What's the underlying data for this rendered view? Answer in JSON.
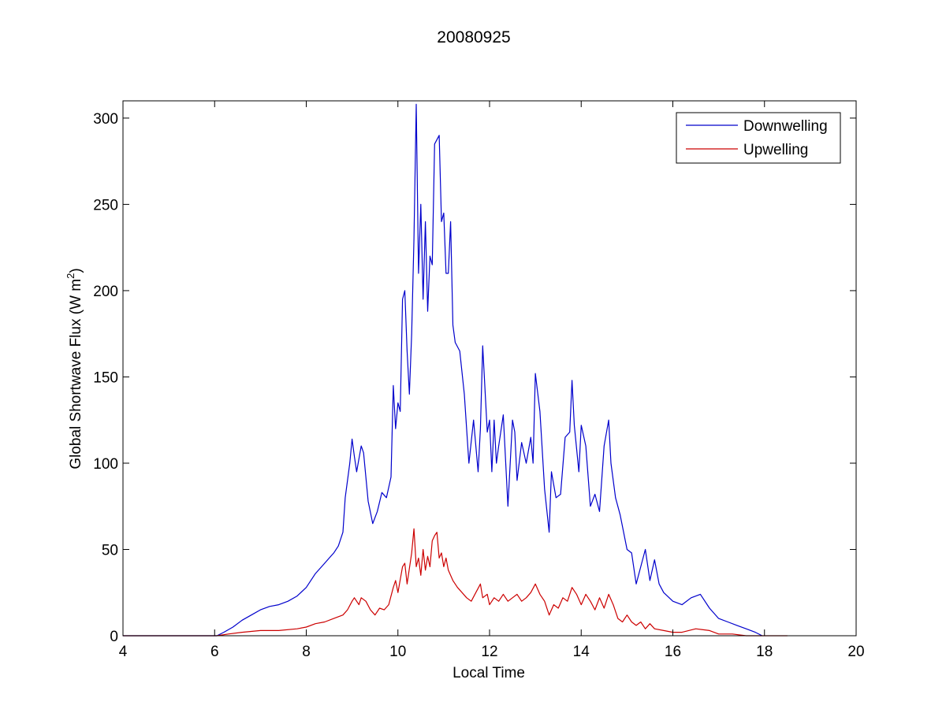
{
  "figure": {
    "background": "#ffffff"
  },
  "chart_data": {
    "type": "line",
    "title": "20080925",
    "xlabel": "Local Time",
    "ylabel_main": "Global Shortwave Flux (W m",
    "ylabel_sup": "2",
    "ylabel_close": ")",
    "xlim": [
      4,
      20
    ],
    "ylim": [
      0,
      310
    ],
    "xticks": [
      4,
      6,
      8,
      10,
      12,
      14,
      16,
      18,
      20
    ],
    "yticks": [
      0,
      50,
      100,
      150,
      200,
      250,
      300
    ],
    "grid": false,
    "legend_position": "top-right",
    "series": [
      {
        "name": "Downwelling",
        "color": "#0000cc",
        "x": [
          4.0,
          5.0,
          5.7,
          6.05,
          6.2,
          6.4,
          6.6,
          6.8,
          7.0,
          7.2,
          7.4,
          7.6,
          7.8,
          8.0,
          8.2,
          8.4,
          8.5,
          8.6,
          8.7,
          8.8,
          8.85,
          8.95,
          9.0,
          9.05,
          9.1,
          9.2,
          9.25,
          9.35,
          9.45,
          9.55,
          9.65,
          9.75,
          9.85,
          9.9,
          9.95,
          10.0,
          10.05,
          10.1,
          10.15,
          10.2,
          10.25,
          10.3,
          10.35,
          10.4,
          10.45,
          10.5,
          10.55,
          10.6,
          10.65,
          10.7,
          10.75,
          10.8,
          10.9,
          10.95,
          11.0,
          11.05,
          11.1,
          11.15,
          11.2,
          11.25,
          11.35,
          11.45,
          11.55,
          11.65,
          11.75,
          11.8,
          11.85,
          11.95,
          12.0,
          12.05,
          12.1,
          12.15,
          12.2,
          12.3,
          12.4,
          12.5,
          12.55,
          12.6,
          12.7,
          12.8,
          12.9,
          12.95,
          13.0,
          13.1,
          13.2,
          13.3,
          13.35,
          13.45,
          13.55,
          13.65,
          13.75,
          13.8,
          13.85,
          13.95,
          14.0,
          14.1,
          14.2,
          14.3,
          14.4,
          14.5,
          14.6,
          14.65,
          14.75,
          14.85,
          15.0,
          15.1,
          15.2,
          15.3,
          15.4,
          15.5,
          15.6,
          15.7,
          15.8,
          16.0,
          16.2,
          16.4,
          16.6,
          16.8,
          17.0,
          17.2,
          17.4,
          17.6,
          17.8,
          17.95
        ],
        "y": [
          0,
          0,
          0,
          0,
          2,
          5,
          9,
          12,
          15,
          17,
          18,
          20,
          23,
          28,
          36,
          42,
          45,
          48,
          52,
          60,
          80,
          100,
          114,
          104,
          95,
          110,
          106,
          78,
          65,
          72,
          83,
          80,
          92,
          145,
          120,
          135,
          130,
          195,
          200,
          165,
          140,
          175,
          230,
          308,
          210,
          250,
          195,
          240,
          188,
          220,
          215,
          285,
          290,
          240,
          245,
          210,
          210,
          240,
          180,
          170,
          165,
          140,
          100,
          125,
          95,
          120,
          168,
          118,
          125,
          95,
          125,
          100,
          110,
          128,
          75,
          125,
          118,
          90,
          112,
          100,
          115,
          100,
          152,
          130,
          85,
          60,
          95,
          80,
          82,
          115,
          118,
          148,
          122,
          95,
          122,
          110,
          75,
          82,
          72,
          110,
          125,
          100,
          80,
          70,
          50,
          48,
          30,
          40,
          50,
          32,
          44,
          30,
          25,
          20,
          18,
          22,
          24,
          16,
          10,
          8,
          6,
          4,
          2,
          0
        ]
      },
      {
        "name": "Upwelling",
        "color": "#cc0000",
        "x": [
          4.0,
          5.0,
          5.8,
          6.05,
          6.3,
          6.6,
          7.0,
          7.4,
          7.8,
          8.0,
          8.2,
          8.4,
          8.6,
          8.8,
          8.9,
          9.0,
          9.05,
          9.1,
          9.15,
          9.2,
          9.3,
          9.4,
          9.5,
          9.6,
          9.7,
          9.8,
          9.9,
          9.95,
          10.0,
          10.1,
          10.15,
          10.2,
          10.3,
          10.35,
          10.4,
          10.45,
          10.5,
          10.55,
          10.6,
          10.65,
          10.7,
          10.75,
          10.8,
          10.85,
          10.9,
          10.95,
          11.0,
          11.05,
          11.1,
          11.2,
          11.3,
          11.4,
          11.5,
          11.6,
          11.7,
          11.8,
          11.85,
          11.95,
          12.0,
          12.1,
          12.2,
          12.3,
          12.4,
          12.5,
          12.6,
          12.7,
          12.8,
          12.9,
          13.0,
          13.1,
          13.2,
          13.3,
          13.4,
          13.5,
          13.6,
          13.7,
          13.8,
          13.9,
          14.0,
          14.1,
          14.2,
          14.3,
          14.4,
          14.5,
          14.6,
          14.7,
          14.8,
          14.9,
          15.0,
          15.1,
          15.2,
          15.3,
          15.4,
          15.5,
          15.6,
          15.8,
          16.0,
          16.2,
          16.5,
          16.8,
          17.0,
          17.3,
          17.6,
          17.9,
          18.2,
          18.5
        ],
        "y": [
          0,
          0,
          0,
          0,
          1,
          2,
          3,
          3,
          4,
          5,
          7,
          8,
          10,
          12,
          15,
          20,
          22,
          20,
          18,
          22,
          20,
          15,
          12,
          16,
          15,
          18,
          28,
          32,
          25,
          40,
          42,
          30,
          48,
          62,
          40,
          45,
          35,
          50,
          38,
          46,
          40,
          55,
          58,
          60,
          45,
          48,
          40,
          45,
          38,
          32,
          28,
          25,
          22,
          20,
          25,
          30,
          22,
          24,
          18,
          22,
          20,
          24,
          20,
          22,
          24,
          20,
          22,
          25,
          30,
          24,
          20,
          12,
          18,
          16,
          22,
          20,
          28,
          24,
          18,
          24,
          20,
          15,
          22,
          16,
          24,
          18,
          10,
          8,
          12,
          8,
          6,
          8,
          4,
          7,
          4,
          3,
          2,
          2,
          4,
          3,
          1,
          1,
          0,
          0,
          0,
          0
        ]
      }
    ]
  }
}
